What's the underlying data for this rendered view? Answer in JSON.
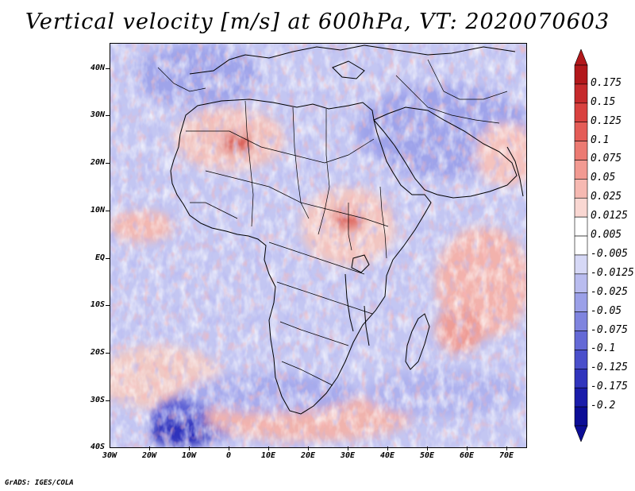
{
  "title": "Vertical velocity [m/s] at 600hPa, VT: 2020070603",
  "credit": "GrADS: IGES/COLA",
  "axes": {
    "lat_labels": [
      "40N",
      "30N",
      "20N",
      "10N",
      "EQ",
      "10S",
      "20S",
      "30S",
      "40S"
    ],
    "lon_labels": [
      "30W",
      "20W",
      "10W",
      "0",
      "10E",
      "20E",
      "30E",
      "40E",
      "50E",
      "60E",
      "70E"
    ]
  },
  "map_data": {
    "type": "heatmap",
    "variable": "vertical velocity",
    "units": "m/s",
    "level": "600hPa",
    "lon_range": [
      -30,
      75
    ],
    "lat_range": [
      -40,
      45
    ]
  },
  "colorbar": {
    "labels": [
      "0.175",
      "0.15",
      "0.125",
      "0.1",
      "0.075",
      "0.05",
      "0.025",
      "0.0125",
      "0.005",
      "-0.005",
      "-0.0125",
      "-0.025",
      "-0.05",
      "-0.075",
      "-0.1",
      "-0.125",
      "-0.175",
      "-0.2"
    ],
    "colors": [
      "#b2181b",
      "#c62a2c",
      "#d9413f",
      "#e45c57",
      "#ec7a72",
      "#f29a92",
      "#f6b9b2",
      "#f9d7d2",
      "#ffffff",
      "#ffffff",
      "#d6d8f6",
      "#b9bcef",
      "#9ba0e8",
      "#7f84df",
      "#6469d6",
      "#4a4fcb",
      "#3034bd",
      "#1a1caa",
      "#0c0d96"
    ]
  }
}
